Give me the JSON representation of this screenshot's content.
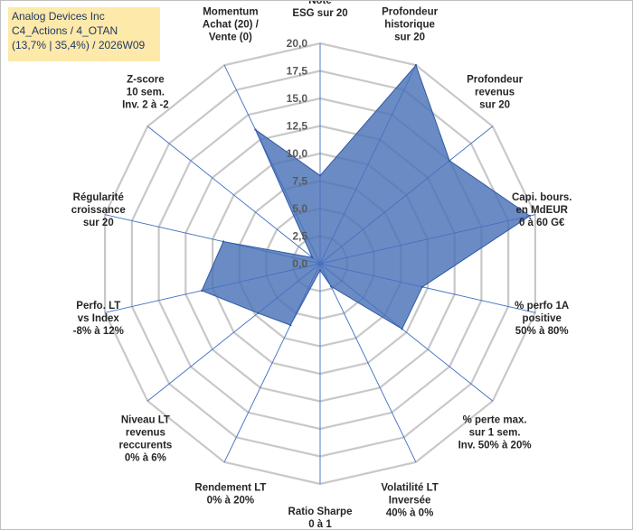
{
  "header": {
    "line1": "Analog Devices Inc",
    "line2": "C4_Actions / 4_OTAN",
    "line3": "(13,7% | 35,4%) / 2026W09"
  },
  "colors": {
    "fill": "#4a72b8",
    "stroke": "#2e59a0",
    "grid": "#c8c8c8",
    "spoke": "#4472c4",
    "title_bg": "#fde9a9"
  },
  "chart_data": {
    "type": "radar",
    "rmin": 0,
    "rmax": 20,
    "tick_step": 2.5,
    "tick_labels": [
      "0,0",
      "2,5",
      "5,0",
      "7,5",
      "10,0",
      "12,5",
      "15,0",
      "17,5",
      "20,0"
    ],
    "axes": [
      {
        "label": [
          "Note",
          "ESG sur 20"
        ],
        "value": 8
      },
      {
        "label": [
          "Profondeur",
          "historique",
          "sur 20"
        ],
        "value": 20
      },
      {
        "label": [
          "Profondeur",
          "revenus",
          "sur 20"
        ],
        "value": 15
      },
      {
        "label": [
          "Capi. bours.",
          "en MdEUR",
          "0 à 60 G€"
        ],
        "value": 19.5
      },
      {
        "label": [
          "% perfo 1A",
          "positive",
          "50% à 80%"
        ],
        "value": 9.5
      },
      {
        "label": [
          "% perte max.",
          "sur 1 sem.",
          "Inv. 50% à 20%"
        ],
        "value": 9.5
      },
      {
        "label": [
          "Volatilité LT",
          "Inversée",
          "40% à 0%"
        ],
        "value": 2.3
      },
      {
        "label": [
          "Ratio Sharpe",
          "0 à 1"
        ],
        "value": 0.6
      },
      {
        "label": [
          "Rendement LT",
          "0% à 20%"
        ],
        "value": 6.2
      },
      {
        "label": [
          "Niveau LT",
          "revenus",
          "reccurents",
          "0% à 6%"
        ],
        "value": 7.2
      },
      {
        "label": [
          "Perfo. LT",
          "vs Index",
          "-8% à 12%"
        ],
        "value": 11.0
      },
      {
        "label": [
          "Régularité",
          "croissance",
          "sur 20"
        ],
        "value": 9.0
      },
      {
        "label": [
          "Z-score",
          "10 sem.",
          "Inv. 2 à -2"
        ],
        "value": 0.9
      },
      {
        "label": [
          "Momentum",
          "Achat (20) /",
          "Vente (0)"
        ],
        "value": 13.5
      }
    ]
  }
}
